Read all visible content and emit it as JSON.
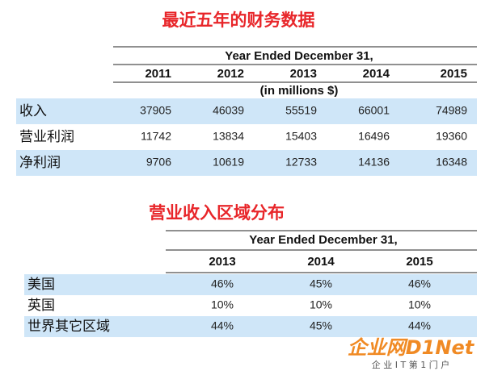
{
  "table1": {
    "title": "最近五年的财务数据",
    "period": "Year Ended December 31,",
    "columns": [
      "2011",
      "2012",
      "2013",
      "2014",
      "2015"
    ],
    "unit": "(in millions $)",
    "rows": [
      {
        "label": "收入",
        "values": [
          "37905",
          "46039",
          "55519",
          "66001",
          "74989"
        ]
      },
      {
        "label": "营业利润",
        "values": [
          "11742",
          "13834",
          "15403",
          "16496",
          "19360"
        ]
      },
      {
        "label": "净利润",
        "values": [
          "9706",
          "10619",
          "12733",
          "14136",
          "16348"
        ]
      }
    ]
  },
  "table2": {
    "title": "营业收入区域分布",
    "period": "Year Ended December 31,",
    "columns": [
      "2013",
      "2014",
      "2015"
    ],
    "rows": [
      {
        "label": "美国",
        "values": [
          "46%",
          "45%",
          "46%"
        ]
      },
      {
        "label": "英国",
        "values": [
          "10%",
          "10%",
          "10%"
        ]
      },
      {
        "label": "世界其它区域",
        "values": [
          "44%",
          "45%",
          "44%"
        ]
      }
    ]
  },
  "watermark": {
    "brand": "企业网D1Net",
    "tagline": "企 业 I T 第 1 门 户"
  }
}
